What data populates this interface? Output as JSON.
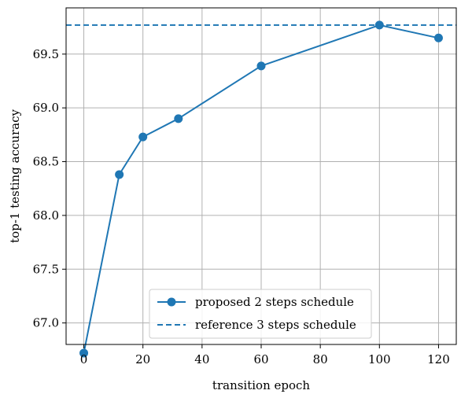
{
  "chart_data": {
    "type": "line",
    "xlabel": "transition epoch",
    "ylabel": "top-1 testing accuracy",
    "xlim": [
      -6,
      126
    ],
    "ylim": [
      66.8,
      69.93
    ],
    "x_ticks": [
      0,
      20,
      40,
      60,
      80,
      100,
      120
    ],
    "y_ticks": [
      67.0,
      67.5,
      68.0,
      68.5,
      69.0,
      69.5
    ],
    "grid": true,
    "legend_position": "lower-right",
    "series": [
      {
        "name": "proposed 2 steps schedule",
        "style": "solid-with-markers",
        "color": "#1f77b4",
        "x": [
          0,
          12,
          20,
          32,
          60,
          100,
          120
        ],
        "y": [
          66.72,
          68.38,
          68.73,
          68.9,
          69.39,
          69.77,
          69.65
        ]
      },
      {
        "name": "reference 3 steps schedule",
        "style": "dashed-horizontal",
        "color": "#1f77b4",
        "y": 69.77
      }
    ]
  }
}
